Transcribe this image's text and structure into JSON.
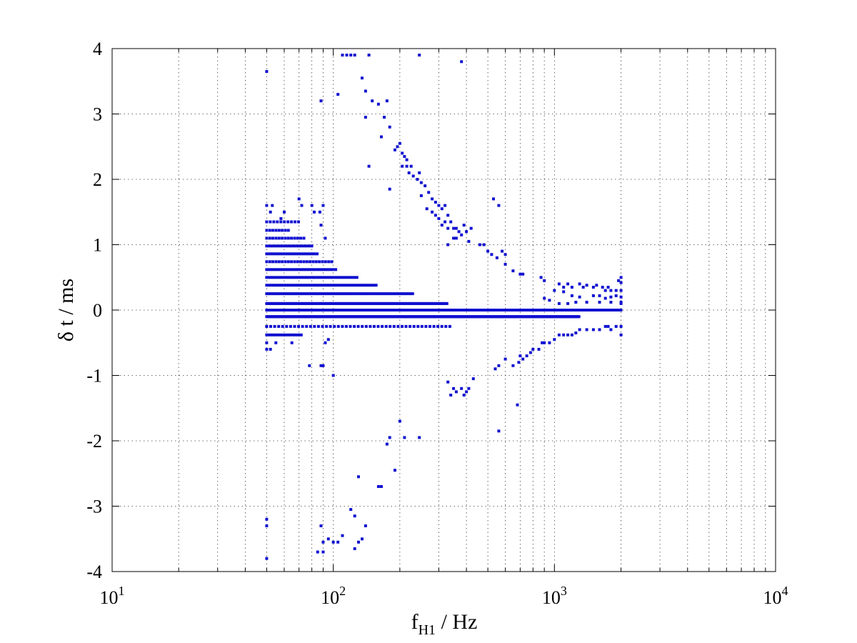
{
  "chart_data": {
    "type": "scatter",
    "title": "",
    "xlabel": {
      "main": "f",
      "sub": "H1",
      "rest": " / Hz"
    },
    "ylabel": {
      "main": "δ t / ms"
    },
    "xscale": "log",
    "xlim": [
      10,
      10000
    ],
    "ylim": [
      -4,
      4
    ],
    "grid": true,
    "marker_color": "#1010d0",
    "x_ticks": [
      {
        "value": 10,
        "base": "10",
        "exp": "1"
      },
      {
        "value": 100,
        "base": "10",
        "exp": "2"
      },
      {
        "value": 1000,
        "base": "10",
        "exp": "3"
      },
      {
        "value": 10000,
        "base": "10",
        "exp": "4"
      }
    ],
    "y_ticks": [
      {
        "value": 4,
        "label": "4"
      },
      {
        "value": 3,
        "label": "3"
      },
      {
        "value": 2,
        "label": "2"
      },
      {
        "value": 1,
        "label": "1"
      },
      {
        "value": 0,
        "label": "0"
      },
      {
        "value": -1,
        "label": "-1"
      },
      {
        "value": -2,
        "label": "-2"
      },
      {
        "value": -3,
        "label": "-3"
      },
      {
        "value": -4,
        "label": "-4"
      }
    ],
    "bands": [
      {
        "y": 0.0,
        "x_from": 50,
        "x_to": 2000,
        "step": 0.003
      },
      {
        "y": -0.1,
        "x_from": 50,
        "x_to": 1300,
        "step": 0.004
      },
      {
        "y": 0.1,
        "x_from": 50,
        "x_to": 330,
        "step": 0.005
      },
      {
        "y": -0.25,
        "x_from": 50,
        "x_to": 340,
        "step": 0.018
      },
      {
        "y": 0.25,
        "x_from": 50,
        "x_to": 230,
        "step": 0.01
      },
      {
        "y": -0.38,
        "x_from": 50,
        "x_to": 72,
        "step": 0.012
      },
      {
        "y": 0.38,
        "x_from": 50,
        "x_to": 160,
        "step": 0.011
      },
      {
        "y": 0.5,
        "x_from": 50,
        "x_to": 130,
        "step": 0.012
      },
      {
        "y": 0.62,
        "x_from": 50,
        "x_to": 105,
        "step": 0.012
      },
      {
        "y": 0.74,
        "x_from": 50,
        "x_to": 100,
        "step": 0.014
      },
      {
        "y": 0.86,
        "x_from": 50,
        "x_to": 85,
        "step": 0.012
      },
      {
        "y": 0.98,
        "x_from": 50,
        "x_to": 80,
        "step": 0.012
      },
      {
        "y": 1.1,
        "x_from": 50,
        "x_to": 74,
        "step": 0.014
      },
      {
        "y": 1.22,
        "x_from": 50,
        "x_to": 64,
        "step": 0.014
      },
      {
        "y": 1.35,
        "x_from": 50,
        "x_to": 72,
        "step": 0.016
      }
    ],
    "points": [
      [
        50,
        -0.5
      ],
      [
        50,
        -0.6
      ],
      [
        52,
        -0.6
      ],
      [
        50,
        -0.25
      ],
      [
        55,
        -0.5
      ],
      [
        65,
        -0.5
      ],
      [
        52,
        1.5
      ],
      [
        50,
        1.6
      ],
      [
        53,
        1.6
      ],
      [
        58,
        1.4
      ],
      [
        60,
        1.5
      ],
      [
        70,
        1.7
      ],
      [
        72,
        1.6
      ],
      [
        80,
        1.6
      ],
      [
        82,
        1.5
      ],
      [
        87,
        1.5
      ],
      [
        90,
        1.6
      ],
      [
        88,
        1.3
      ],
      [
        92,
        1.1
      ],
      [
        50,
        3.65
      ],
      [
        50,
        -3.2
      ],
      [
        50,
        -3.3
      ],
      [
        50,
        -3.8
      ],
      [
        78,
        -0.85
      ],
      [
        88,
        -0.85
      ],
      [
        92,
        -0.5
      ],
      [
        95,
        -0.45
      ],
      [
        100,
        -1.0
      ],
      [
        90,
        -0.85
      ],
      [
        88,
        3.2
      ],
      [
        105,
        3.3
      ],
      [
        110,
        3.9
      ],
      [
        115,
        3.9
      ],
      [
        120,
        3.9
      ],
      [
        125,
        3.9
      ],
      [
        145,
        3.9
      ],
      [
        245,
        3.9
      ],
      [
        380,
        3.8
      ],
      [
        135,
        3.55
      ],
      [
        140,
        3.35
      ],
      [
        140,
        2.95
      ],
      [
        150,
        3.2
      ],
      [
        160,
        3.15
      ],
      [
        170,
        2.95
      ],
      [
        175,
        3.2
      ],
      [
        165,
        2.65
      ],
      [
        180,
        2.8
      ],
      [
        145,
        2.2
      ],
      [
        180,
        1.85
      ],
      [
        190,
        2.45
      ],
      [
        195,
        2.5
      ],
      [
        200,
        2.55
      ],
      [
        205,
        2.4
      ],
      [
        210,
        2.35
      ],
      [
        215,
        2.3
      ],
      [
        205,
        2.2
      ],
      [
        215,
        2.2
      ],
      [
        220,
        2.1
      ],
      [
        230,
        2.05
      ],
      [
        240,
        2.0
      ],
      [
        250,
        1.95
      ],
      [
        245,
        2.1
      ],
      [
        225,
        2.2
      ],
      [
        260,
        1.9
      ],
      [
        270,
        1.8
      ],
      [
        280,
        1.7
      ],
      [
        290,
        1.65
      ],
      [
        300,
        1.6
      ],
      [
        310,
        1.55
      ],
      [
        320,
        1.6
      ],
      [
        330,
        1.45
      ],
      [
        340,
        1.35
      ],
      [
        350,
        1.25
      ],
      [
        360,
        1.1
      ],
      [
        370,
        1.2
      ],
      [
        380,
        1.15
      ],
      [
        390,
        1.3
      ],
      [
        400,
        1.2
      ],
      [
        410,
        1.05
      ],
      [
        300,
        1.4
      ],
      [
        310,
        1.3
      ],
      [
        320,
        1.35
      ],
      [
        330,
        1.25
      ],
      [
        360,
        1.25
      ],
      [
        420,
        1.25
      ],
      [
        290,
        1.45
      ],
      [
        280,
        1.5
      ],
      [
        265,
        1.55
      ],
      [
        250,
        1.75
      ],
      [
        330,
        1.0
      ],
      [
        350,
        1.1
      ],
      [
        460,
        1.0
      ],
      [
        480,
        1.0
      ],
      [
        500,
        0.9
      ],
      [
        520,
        0.85
      ],
      [
        550,
        0.8
      ],
      [
        600,
        0.7
      ],
      [
        650,
        0.6
      ],
      [
        700,
        0.55
      ],
      [
        720,
        0.55
      ],
      [
        580,
        0.9
      ],
      [
        600,
        0.85
      ],
      [
        560,
        1.6
      ],
      [
        530,
        1.7
      ],
      [
        870,
        0.5
      ],
      [
        900,
        0.45
      ],
      [
        1050,
        0.4
      ],
      [
        1100,
        0.35
      ],
      [
        1150,
        0.4
      ],
      [
        1200,
        0.35
      ],
      [
        1300,
        0.4
      ],
      [
        1350,
        0.35
      ],
      [
        1400,
        0.38
      ],
      [
        1500,
        0.35
      ],
      [
        1550,
        0.38
      ],
      [
        1650,
        0.35
      ],
      [
        1700,
        0.3
      ],
      [
        1750,
        0.35
      ],
      [
        1800,
        0.3
      ],
      [
        1900,
        0.3
      ],
      [
        2000,
        0.3
      ],
      [
        2000,
        0.42
      ],
      [
        2000,
        0.5
      ],
      [
        1950,
        0.45
      ],
      [
        1000,
        0.3
      ],
      [
        1100,
        0.28
      ],
      [
        1200,
        0.22
      ],
      [
        1300,
        0.2
      ],
      [
        1500,
        0.22
      ],
      [
        1600,
        0.22
      ],
      [
        1700,
        0.18
      ],
      [
        1800,
        0.2
      ],
      [
        1900,
        0.22
      ],
      [
        2000,
        0.2
      ],
      [
        900,
        0.18
      ],
      [
        950,
        0.15
      ],
      [
        1050,
        0.1
      ],
      [
        1150,
        0.1
      ],
      [
        1250,
        0.12
      ],
      [
        1400,
        0.12
      ],
      [
        1600,
        0.12
      ],
      [
        1800,
        0.12
      ],
      [
        2000,
        0.12
      ],
      [
        2000,
        0.1
      ],
      [
        2000,
        -0.25
      ],
      [
        2000,
        -0.38
      ],
      [
        1900,
        -0.25
      ],
      [
        1800,
        -0.3
      ],
      [
        1750,
        -0.25
      ],
      [
        1700,
        -0.25
      ],
      [
        1600,
        -0.3
      ],
      [
        1500,
        -0.3
      ],
      [
        1400,
        -0.3
      ],
      [
        1300,
        -0.3
      ],
      [
        1250,
        -0.35
      ],
      [
        1200,
        -0.38
      ],
      [
        1150,
        -0.38
      ],
      [
        1100,
        -0.38
      ],
      [
        1050,
        -0.38
      ],
      [
        1000,
        -0.45
      ],
      [
        950,
        -0.5
      ],
      [
        900,
        -0.5
      ],
      [
        880,
        -0.5
      ],
      [
        850,
        -0.6
      ],
      [
        800,
        -0.6
      ],
      [
        780,
        -0.65
      ],
      [
        750,
        -0.7
      ],
      [
        720,
        -0.75
      ],
      [
        700,
        -0.7
      ],
      [
        690,
        -0.8
      ],
      [
        650,
        -0.85
      ],
      [
        600,
        -0.75
      ],
      [
        560,
        -0.85
      ],
      [
        540,
        -0.9
      ],
      [
        330,
        -1.1
      ],
      [
        340,
        -1.3
      ],
      [
        350,
        -1.2
      ],
      [
        360,
        -1.25
      ],
      [
        380,
        -1.2
      ],
      [
        390,
        -1.3
      ],
      [
        400,
        -1.25
      ],
      [
        410,
        -1.2
      ],
      [
        430,
        -1.05
      ],
      [
        560,
        -1.85
      ],
      [
        680,
        -1.45
      ],
      [
        200,
        -1.7
      ],
      [
        180,
        -1.95
      ],
      [
        210,
        -1.95
      ],
      [
        245,
        -1.95
      ],
      [
        175,
        -2.05
      ],
      [
        160,
        -2.7
      ],
      [
        165,
        -2.7
      ],
      [
        190,
        -2.45
      ],
      [
        130,
        -2.55
      ],
      [
        120,
        -3.05
      ],
      [
        125,
        -3.15
      ],
      [
        140,
        -3.3
      ],
      [
        135,
        -3.5
      ],
      [
        130,
        -3.55
      ],
      [
        125,
        -3.65
      ],
      [
        110,
        -3.45
      ],
      [
        105,
        -3.55
      ],
      [
        95,
        -3.5
      ],
      [
        90,
        -3.55
      ],
      [
        88,
        -3.3
      ],
      [
        90,
        -3.7
      ],
      [
        100,
        -3.55
      ],
      [
        85,
        -3.7
      ]
    ]
  }
}
